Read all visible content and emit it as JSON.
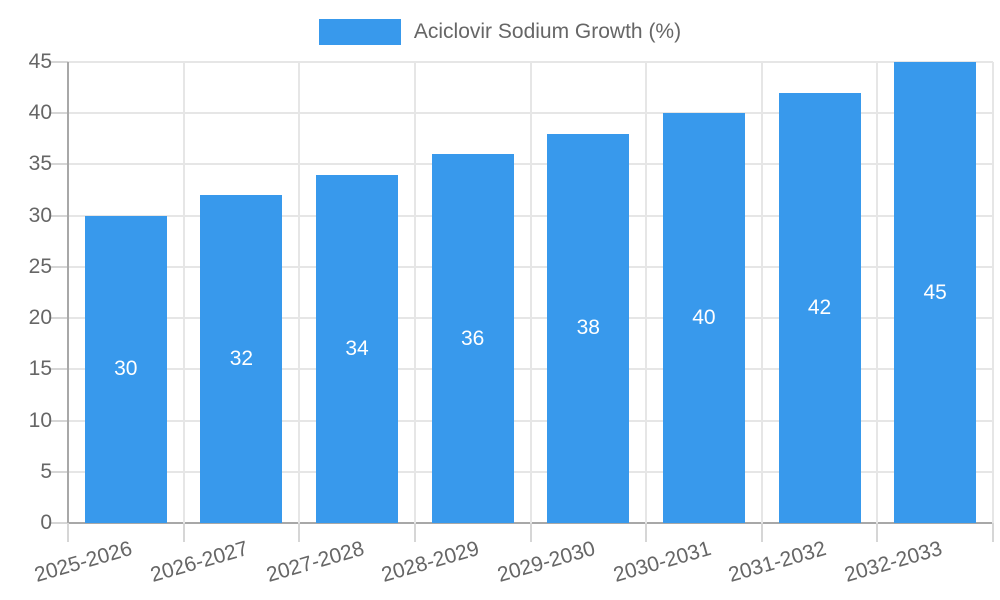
{
  "chart_data": {
    "type": "bar",
    "title": "Aciclovir Sodium Growth (%)",
    "categories": [
      "2025-2026",
      "2026-2027",
      "2027-2028",
      "2028-2029",
      "2029-2030",
      "2030-2031",
      "2031-2032",
      "2032-2033"
    ],
    "values": [
      30,
      32,
      34,
      36,
      38,
      40,
      42,
      45
    ],
    "xlabel": "",
    "ylabel": "",
    "ylim": [
      0,
      45
    ],
    "ytick_step": 5,
    "grid": true,
    "legend_position": "top",
    "x_label_rotation_deg": -16,
    "value_labels": "centered-inside-bars",
    "colors": {
      "bar": "#3899ec",
      "value_label": "#ffffff",
      "tick_label": "#666666",
      "gridline": "#e6e6e6",
      "axis_line": "#a8a8a8",
      "tick_mark": "#d6d6d6",
      "background": "#ffffff"
    }
  }
}
